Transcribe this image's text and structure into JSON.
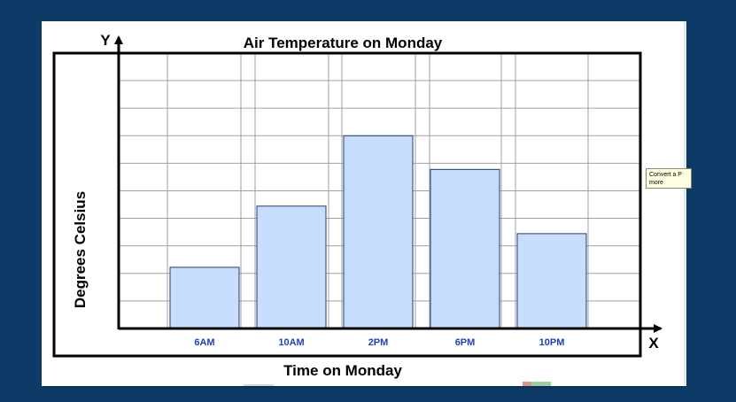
{
  "colors": {
    "background": "#0d3a66",
    "slide": "#ffffff",
    "bar_fill": "#c6defc",
    "bar_stroke": "#1f3b73",
    "grid": "#a0a0a0",
    "frame": "#000000",
    "tick_label": "#1f3fbf"
  },
  "tooltip": {
    "line1": "Convert a P",
    "line2": "more"
  },
  "chart_data": {
    "type": "bar",
    "title": "Air Temperature on Monday",
    "xlabel": "Time on Monday",
    "ylabel": "Degrees Celsius",
    "x_axis_letter": "X",
    "y_axis_letter": "Y",
    "categories": [
      "6AM",
      "10AM",
      "2PM",
      "6PM",
      "10PM"
    ],
    "values": [
      2,
      4,
      6.3,
      5.2,
      3.1
    ],
    "ylim": [
      0,
      9
    ],
    "grid": true,
    "legend": "none"
  }
}
